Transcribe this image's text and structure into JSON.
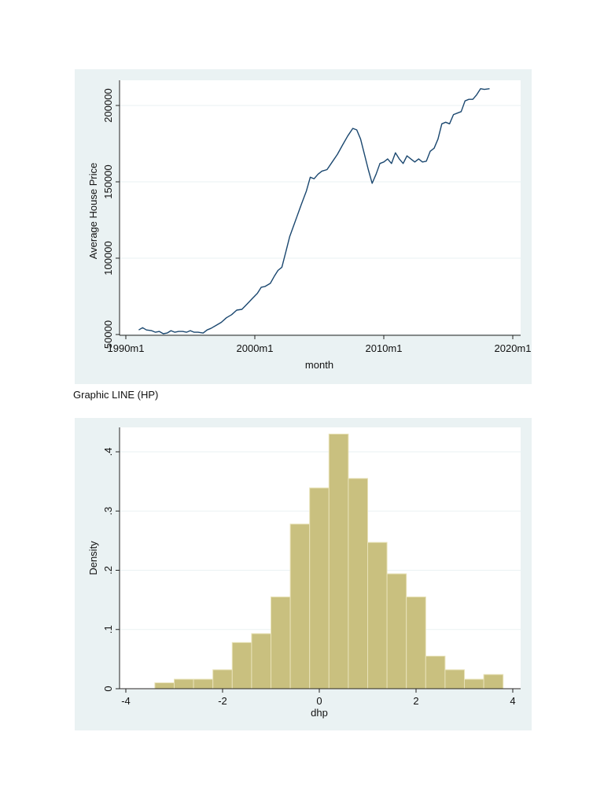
{
  "caption": "Graphic LINE (HP)",
  "colors": {
    "panel_bg": "#eaf2f3",
    "plot_bg": "#ffffff",
    "grid": "#eaf2f3",
    "line": "#1a476f",
    "bar_fill": "#c9c07f",
    "bar_edge": "#e8e2b8"
  },
  "chart_data": [
    {
      "type": "line",
      "title": "",
      "xlabel": "month",
      "ylabel": "Average House Price",
      "xlim": [
        1990.0,
        2020.0
      ],
      "ylim": [
        50000,
        215000
      ],
      "grid": true,
      "xticks": [
        {
          "value": 1990.0,
          "label": "1990m1"
        },
        {
          "value": 2000.0,
          "label": "2000m1"
        },
        {
          "value": 2010.0,
          "label": "2010m1"
        },
        {
          "value": 2020.0,
          "label": "2020m1"
        }
      ],
      "yticks": [
        {
          "value": 50000,
          "label": "50000"
        },
        {
          "value": 100000,
          "label": "100000"
        },
        {
          "value": 150000,
          "label": "150000"
        },
        {
          "value": 200000,
          "label": "200000"
        }
      ],
      "series": [
        {
          "name": "Average House Price",
          "x": [
            1991.0,
            1991.3,
            1991.6,
            1992.0,
            1992.3,
            1992.6,
            1992.9,
            1993.2,
            1993.5,
            1993.8,
            1994.1,
            1994.4,
            1994.7,
            1995.0,
            1995.3,
            1995.6,
            1996.0,
            1996.3,
            1996.6,
            1997.0,
            1997.4,
            1997.8,
            1998.2,
            1998.6,
            1999.0,
            1999.4,
            1999.8,
            2000.2,
            2000.5,
            2000.8,
            2001.2,
            2001.5,
            2001.8,
            2002.1,
            2002.4,
            2002.7,
            2003.0,
            2003.3,
            2003.6,
            2004.0,
            2004.3,
            2004.6,
            2004.9,
            2005.2,
            2005.6,
            2006.0,
            2006.4,
            2006.8,
            2007.2,
            2007.6,
            2007.9,
            2008.2,
            2008.5,
            2008.8,
            2009.1,
            2009.4,
            2009.7,
            2010.0,
            2010.3,
            2010.6,
            2010.9,
            2011.2,
            2011.5,
            2011.8,
            2012.1,
            2012.4,
            2012.7,
            2013.0,
            2013.3,
            2013.6,
            2013.9,
            2014.2,
            2014.5,
            2014.8,
            2015.1,
            2015.4,
            2015.7,
            2016.0,
            2016.3,
            2016.6,
            2016.9,
            2017.2,
            2017.5,
            2017.8,
            2018.2
          ],
          "y": [
            53000,
            54500,
            53000,
            52500,
            51500,
            52000,
            50500,
            51000,
            52500,
            51500,
            52000,
            52000,
            51500,
            52500,
            51500,
            51500,
            51000,
            53000,
            54000,
            56000,
            58000,
            61000,
            63000,
            66000,
            66500,
            70000,
            73500,
            77000,
            81000,
            81500,
            83500,
            88000,
            92000,
            94000,
            104000,
            114000,
            121000,
            128000,
            135000,
            144000,
            153000,
            152000,
            155000,
            157000,
            158000,
            163000,
            168000,
            174000,
            180000,
            185000,
            184000,
            178000,
            168000,
            158000,
            149000,
            155000,
            162000,
            163000,
            165000,
            162000,
            169000,
            165000,
            162000,
            167000,
            165000,
            163000,
            165000,
            163000,
            163500,
            170000,
            172000,
            178000,
            188000,
            189000,
            188000,
            194000,
            195000,
            196000,
            203000,
            204000,
            204000,
            207000,
            211000,
            210500,
            211000
          ]
        }
      ]
    },
    {
      "type": "bar",
      "subtype": "histogram",
      "title": "",
      "xlabel": "dhp",
      "ylabel": "Density",
      "xlim": [
        -4,
        4
      ],
      "ylim": [
        0,
        0.44
      ],
      "grid": true,
      "bin_width": 0.4,
      "xticks": [
        {
          "value": -4,
          "label": "-4"
        },
        {
          "value": -2,
          "label": "-2"
        },
        {
          "value": 0,
          "label": "0"
        },
        {
          "value": 2,
          "label": "2"
        },
        {
          "value": 4,
          "label": "4"
        }
      ],
      "yticks": [
        {
          "value": 0,
          "label": "0"
        },
        {
          "value": 0.1,
          "label": ".1"
        },
        {
          "value": 0.2,
          "label": ".2"
        },
        {
          "value": 0.3,
          "label": ".3"
        },
        {
          "value": 0.4,
          "label": ".4"
        }
      ],
      "bin_starts": [
        -3.4,
        -3.0,
        -2.6,
        -2.2,
        -1.8,
        -1.4,
        -1.0,
        -0.6,
        -0.2,
        0.2,
        0.6,
        1.0,
        1.4,
        1.8,
        2.2,
        2.6,
        3.0,
        3.4
      ],
      "values": [
        0.01,
        0.016,
        0.016,
        0.032,
        0.078,
        0.093,
        0.155,
        0.278,
        0.339,
        0.43,
        0.355,
        0.247,
        0.194,
        0.155,
        0.055,
        0.032,
        0.016,
        0.024
      ]
    }
  ]
}
